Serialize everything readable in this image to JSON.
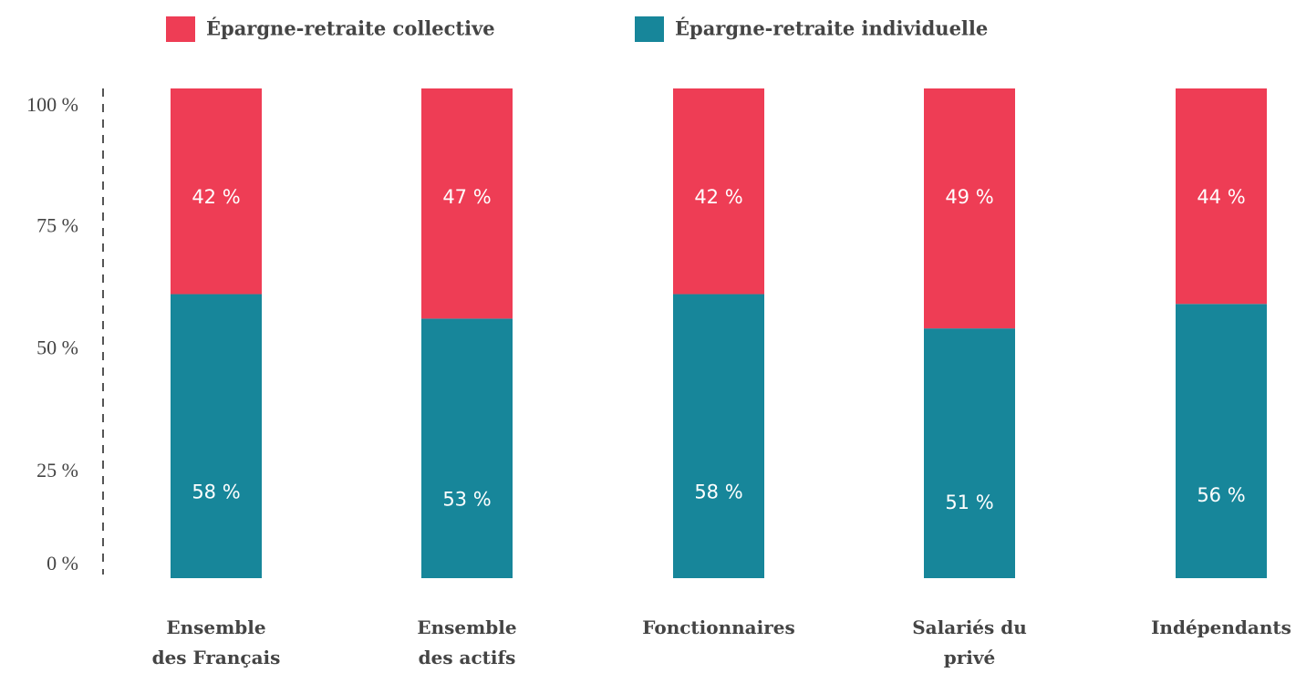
{
  "chart_data": {
    "type": "stacked-bar",
    "categories": [
      "Ensemble\ndes Français",
      "Ensemble\ndes actifs",
      "Fonctionnaires",
      "Salariés du\nprivé",
      "Indépendants"
    ],
    "series": [
      {
        "name": "Épargne-retraite individuelle",
        "color": "#17869a",
        "values": [
          58,
          53,
          58,
          51,
          56
        ],
        "value_labels": [
          "58 %",
          "53 %",
          "58 %",
          "51 %",
          "56 %"
        ]
      },
      {
        "name": "Épargne-retraite collective",
        "color": "#ee3d55",
        "values": [
          42,
          47,
          42,
          49,
          44
        ],
        "value_labels": [
          "42 %",
          "47 %",
          "42 %",
          "49 %",
          "44 %"
        ]
      }
    ],
    "ylim": [
      0,
      100
    ],
    "yticks": [
      {
        "value": 0,
        "label": "0 %"
      },
      {
        "value": 25,
        "label": "25 %"
      },
      {
        "value": 50,
        "label": "50 %"
      },
      {
        "value": 75,
        "label": "75 %"
      },
      {
        "value": 100,
        "label": "100 %"
      }
    ],
    "legend": "top"
  }
}
